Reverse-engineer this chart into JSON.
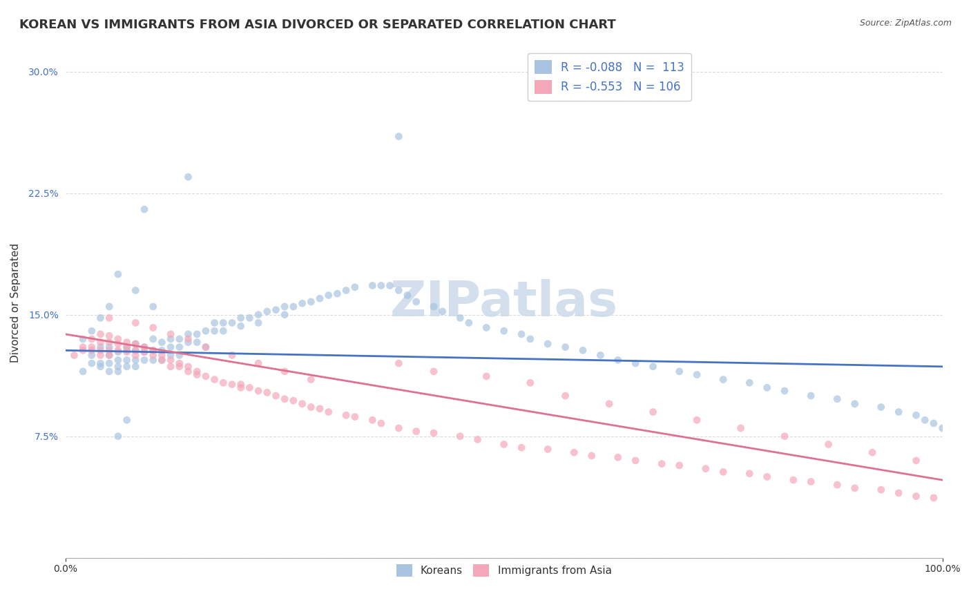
{
  "title": "KOREAN VS IMMIGRANTS FROM ASIA DIVORCED OR SEPARATED CORRELATION CHART",
  "source": "Source: ZipAtlas.com",
  "xlabel": "",
  "ylabel": "Divorced or Separated",
  "legend_entries": [
    {
      "label": "R = -0.088   N =  113",
      "color": "#a8c4e0",
      "line_color": "#4472c4"
    },
    {
      "label": "R = -0.553   N = 106",
      "color": "#f4a7b9",
      "line_color": "#e07090"
    }
  ],
  "legend_labels": [
    "Koreans",
    "Immigrants from Asia"
  ],
  "xlim": [
    0.0,
    1.0
  ],
  "ylim": [
    0.0,
    0.315
  ],
  "yticks": [
    0.0,
    0.075,
    0.15,
    0.225,
    0.3
  ],
  "ytick_labels": [
    "",
    "7.5%",
    "15.0%",
    "22.5%",
    "30.0%"
  ],
  "xtick_labels": [
    "0.0%",
    "100.0%"
  ],
  "watermark": "ZIPatlas",
  "blue_scatter_x": [
    0.02,
    0.03,
    0.03,
    0.04,
    0.04,
    0.04,
    0.05,
    0.05,
    0.05,
    0.05,
    0.06,
    0.06,
    0.06,
    0.06,
    0.07,
    0.07,
    0.07,
    0.07,
    0.08,
    0.08,
    0.08,
    0.08,
    0.09,
    0.09,
    0.09,
    0.1,
    0.1,
    0.1,
    0.11,
    0.11,
    0.11,
    0.12,
    0.12,
    0.12,
    0.13,
    0.13,
    0.13,
    0.14,
    0.14,
    0.15,
    0.15,
    0.16,
    0.17,
    0.17,
    0.18,
    0.18,
    0.19,
    0.2,
    0.2,
    0.21,
    0.22,
    0.22,
    0.23,
    0.24,
    0.25,
    0.25,
    0.26,
    0.27,
    0.28,
    0.29,
    0.3,
    0.31,
    0.32,
    0.33,
    0.35,
    0.36,
    0.37,
    0.38,
    0.39,
    0.4,
    0.42,
    0.43,
    0.45,
    0.46,
    0.48,
    0.5,
    0.52,
    0.53,
    0.55,
    0.57,
    0.59,
    0.61,
    0.63,
    0.65,
    0.67,
    0.7,
    0.72,
    0.75,
    0.78,
    0.8,
    0.82,
    0.85,
    0.88,
    0.9,
    0.93,
    0.95,
    0.97,
    0.98,
    0.99,
    1.0,
    0.38,
    0.14,
    0.09,
    0.08,
    0.06,
    0.05,
    0.04,
    0.03,
    0.02,
    0.1,
    0.07,
    0.06,
    0.16
  ],
  "blue_scatter_y": [
    0.115,
    0.125,
    0.12,
    0.13,
    0.12,
    0.118,
    0.13,
    0.125,
    0.12,
    0.115,
    0.127,
    0.122,
    0.118,
    0.115,
    0.13,
    0.128,
    0.122,
    0.118,
    0.132,
    0.128,
    0.122,
    0.118,
    0.13,
    0.127,
    0.122,
    0.135,
    0.128,
    0.122,
    0.133,
    0.128,
    0.122,
    0.135,
    0.13,
    0.125,
    0.135,
    0.13,
    0.125,
    0.138,
    0.133,
    0.138,
    0.133,
    0.14,
    0.145,
    0.14,
    0.145,
    0.14,
    0.145,
    0.148,
    0.143,
    0.148,
    0.15,
    0.145,
    0.152,
    0.153,
    0.155,
    0.15,
    0.155,
    0.157,
    0.158,
    0.16,
    0.162,
    0.163,
    0.165,
    0.167,
    0.168,
    0.168,
    0.168,
    0.165,
    0.162,
    0.158,
    0.155,
    0.152,
    0.148,
    0.145,
    0.142,
    0.14,
    0.138,
    0.135,
    0.132,
    0.13,
    0.128,
    0.125,
    0.122,
    0.12,
    0.118,
    0.115,
    0.113,
    0.11,
    0.108,
    0.105,
    0.103,
    0.1,
    0.098,
    0.095,
    0.093,
    0.09,
    0.088,
    0.085,
    0.083,
    0.08,
    0.26,
    0.235,
    0.215,
    0.165,
    0.175,
    0.155,
    0.148,
    0.14,
    0.135,
    0.155,
    0.085,
    0.075,
    0.13
  ],
  "pink_scatter_x": [
    0.01,
    0.02,
    0.02,
    0.03,
    0.03,
    0.03,
    0.04,
    0.04,
    0.04,
    0.04,
    0.05,
    0.05,
    0.05,
    0.05,
    0.06,
    0.06,
    0.06,
    0.07,
    0.07,
    0.07,
    0.08,
    0.08,
    0.08,
    0.09,
    0.09,
    0.1,
    0.1,
    0.11,
    0.11,
    0.12,
    0.12,
    0.13,
    0.13,
    0.14,
    0.14,
    0.15,
    0.15,
    0.16,
    0.17,
    0.18,
    0.19,
    0.2,
    0.2,
    0.21,
    0.22,
    0.23,
    0.24,
    0.25,
    0.26,
    0.27,
    0.28,
    0.29,
    0.3,
    0.32,
    0.33,
    0.35,
    0.36,
    0.38,
    0.4,
    0.42,
    0.45,
    0.47,
    0.5,
    0.52,
    0.55,
    0.58,
    0.6,
    0.63,
    0.65,
    0.68,
    0.7,
    0.73,
    0.75,
    0.78,
    0.8,
    0.83,
    0.85,
    0.88,
    0.9,
    0.93,
    0.95,
    0.97,
    0.99,
    0.38,
    0.42,
    0.48,
    0.53,
    0.57,
    0.62,
    0.67,
    0.72,
    0.77,
    0.82,
    0.87,
    0.92,
    0.97,
    0.05,
    0.08,
    0.1,
    0.12,
    0.14,
    0.16,
    0.19,
    0.22,
    0.25,
    0.28
  ],
  "pink_scatter_y": [
    0.125,
    0.13,
    0.128,
    0.135,
    0.13,
    0.128,
    0.138,
    0.133,
    0.128,
    0.125,
    0.137,
    0.133,
    0.128,
    0.125,
    0.135,
    0.132,
    0.128,
    0.133,
    0.13,
    0.127,
    0.132,
    0.128,
    0.125,
    0.13,
    0.127,
    0.128,
    0.125,
    0.125,
    0.122,
    0.122,
    0.118,
    0.12,
    0.118,
    0.118,
    0.115,
    0.115,
    0.113,
    0.112,
    0.11,
    0.108,
    0.107,
    0.107,
    0.105,
    0.105,
    0.103,
    0.102,
    0.1,
    0.098,
    0.097,
    0.095,
    0.093,
    0.092,
    0.09,
    0.088,
    0.087,
    0.085,
    0.083,
    0.08,
    0.078,
    0.077,
    0.075,
    0.073,
    0.07,
    0.068,
    0.067,
    0.065,
    0.063,
    0.062,
    0.06,
    0.058,
    0.057,
    0.055,
    0.053,
    0.052,
    0.05,
    0.048,
    0.047,
    0.045,
    0.043,
    0.042,
    0.04,
    0.038,
    0.037,
    0.12,
    0.115,
    0.112,
    0.108,
    0.1,
    0.095,
    0.09,
    0.085,
    0.08,
    0.075,
    0.07,
    0.065,
    0.06,
    0.148,
    0.145,
    0.142,
    0.138,
    0.135,
    0.13,
    0.125,
    0.12,
    0.115,
    0.11
  ],
  "blue_line_x": [
    0.0,
    1.0
  ],
  "blue_line_y": [
    0.128,
    0.118
  ],
  "pink_line_x": [
    0.0,
    1.0
  ],
  "pink_line_y": [
    0.138,
    0.048
  ],
  "scatter_size": 60,
  "scatter_alpha": 0.7,
  "scatter_blue_color": "#a8c4e0",
  "scatter_pink_color": "#f4a7b9",
  "line_blue_color": "#4472c4",
  "line_pink_color": "#e07090",
  "title_fontsize": 13,
  "axis_label_fontsize": 11,
  "tick_fontsize": 10,
  "watermark_color": "#c8d8e8",
  "watermark_fontsize": 52,
  "background_color": "#ffffff",
  "grid_color": "#cccccc",
  "grid_style": "--",
  "grid_alpha": 0.7,
  "source_fontsize": 9,
  "source_color": "#555555"
}
